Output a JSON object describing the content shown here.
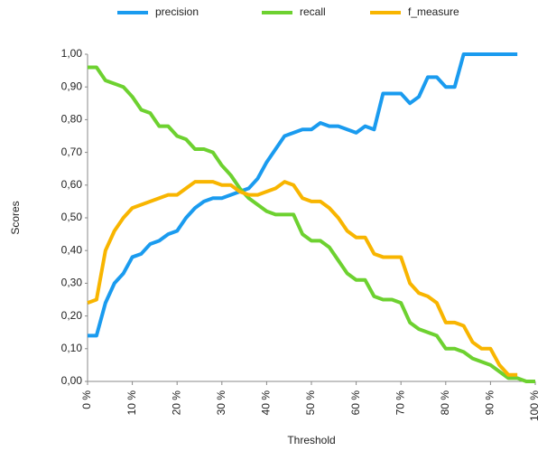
{
  "chart_data": {
    "type": "line",
    "x_label": "Threshold",
    "y_label": "Scores",
    "x": [
      0,
      2,
      4,
      6,
      8,
      10,
      12,
      14,
      16,
      18,
      20,
      22,
      24,
      26,
      28,
      30,
      32,
      34,
      36,
      38,
      40,
      42,
      44,
      46,
      48,
      50,
      52,
      54,
      56,
      58,
      60,
      62,
      64,
      66,
      68,
      70,
      72,
      74,
      76,
      78,
      80,
      82,
      84,
      86,
      88,
      90,
      92,
      94,
      96,
      98,
      100
    ],
    "series": [
      {
        "name": "precision",
        "color": "#1a9bef",
        "values": [
          0.14,
          0.14,
          0.24,
          0.3,
          0.33,
          0.38,
          0.39,
          0.42,
          0.43,
          0.45,
          0.46,
          0.5,
          0.53,
          0.55,
          0.56,
          0.56,
          0.57,
          0.58,
          0.59,
          0.62,
          0.67,
          0.71,
          0.75,
          0.76,
          0.77,
          0.77,
          0.79,
          0.78,
          0.78,
          0.77,
          0.76,
          0.78,
          0.77,
          0.88,
          0.88,
          0.88,
          0.85,
          0.87,
          0.93,
          0.93,
          0.9,
          0.9,
          1.0,
          1.0,
          1.0,
          1.0,
          1.0,
          1.0,
          1.0,
          null,
          null
        ]
      },
      {
        "name": "recall",
        "color": "#6dd130",
        "values": [
          0.96,
          0.96,
          0.92,
          0.91,
          0.9,
          0.87,
          0.83,
          0.82,
          0.78,
          0.78,
          0.75,
          0.74,
          0.71,
          0.71,
          0.7,
          0.66,
          0.63,
          0.59,
          0.56,
          0.54,
          0.52,
          0.51,
          0.51,
          0.51,
          0.45,
          0.43,
          0.43,
          0.41,
          0.37,
          0.33,
          0.31,
          0.31,
          0.26,
          0.25,
          0.25,
          0.24,
          0.18,
          0.16,
          0.15,
          0.14,
          0.1,
          0.1,
          0.09,
          0.07,
          0.06,
          0.05,
          0.03,
          0.01,
          0.01,
          0,
          0
        ]
      },
      {
        "name": "f_measure",
        "color": "#f8b500",
        "values": [
          0.24,
          0.25,
          0.4,
          0.46,
          0.5,
          0.53,
          0.54,
          0.55,
          0.56,
          0.57,
          0.57,
          0.59,
          0.61,
          0.61,
          0.61,
          0.6,
          0.6,
          0.58,
          0.57,
          0.57,
          0.58,
          0.59,
          0.61,
          0.6,
          0.56,
          0.55,
          0.55,
          0.53,
          0.5,
          0.46,
          0.44,
          0.44,
          0.39,
          0.38,
          0.38,
          0.38,
          0.3,
          0.27,
          0.26,
          0.24,
          0.18,
          0.18,
          0.17,
          0.12,
          0.1,
          0.1,
          0.05,
          0.02,
          0.02,
          null,
          null
        ]
      }
    ],
    "xlim": [
      0,
      100
    ],
    "ylim": [
      0,
      1
    ],
    "xticks": [
      {
        "value": 0,
        "label": "0 %"
      },
      {
        "value": 10,
        "label": "10 %"
      },
      {
        "value": 20,
        "label": "20 %"
      },
      {
        "value": 30,
        "label": "30 %"
      },
      {
        "value": 40,
        "label": "40 %"
      },
      {
        "value": 50,
        "label": "50 %"
      },
      {
        "value": 60,
        "label": "60 %"
      },
      {
        "value": 70,
        "label": "70 %"
      },
      {
        "value": 80,
        "label": "80 %"
      },
      {
        "value": 90,
        "label": "90 %"
      },
      {
        "value": 100,
        "label": "100 %"
      }
    ],
    "yticks": [
      {
        "value": 0,
        "label": "0,00"
      },
      {
        "value": 0.1,
        "label": "0,10"
      },
      {
        "value": 0.2,
        "label": "0,20"
      },
      {
        "value": 0.3,
        "label": "0,30"
      },
      {
        "value": 0.4,
        "label": "0,40"
      },
      {
        "value": 0.5,
        "label": "0,50"
      },
      {
        "value": 0.6,
        "label": "0,60"
      },
      {
        "value": 0.7,
        "label": "0,70"
      },
      {
        "value": 0.8,
        "label": "0,80"
      },
      {
        "value": 0.9,
        "label": "0,90"
      },
      {
        "value": 1,
        "label": "1,00"
      }
    ],
    "legend": "top",
    "grid": false
  }
}
